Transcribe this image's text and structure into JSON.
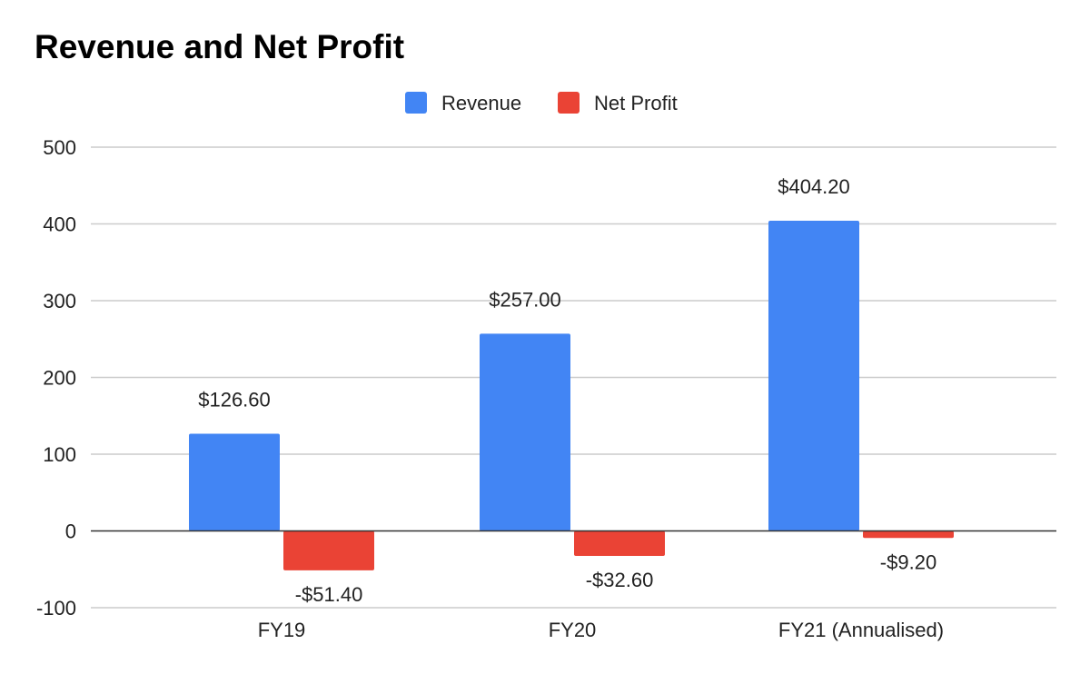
{
  "chart_data": {
    "type": "bar",
    "title": "Revenue and Net Profit",
    "categories": [
      "FY19",
      "FY20",
      "FY21 (Annualised)"
    ],
    "series": [
      {
        "name": "Revenue",
        "color": "#4285f4",
        "values": [
          126.6,
          257.0,
          404.2
        ],
        "labels": [
          "$126.60",
          "$257.00",
          "$404.20"
        ]
      },
      {
        "name": "Net Profit",
        "color": "#ea4335",
        "values": [
          -51.4,
          -32.6,
          -9.2
        ],
        "labels": [
          "-$51.40",
          "-$32.60",
          "-$9.20"
        ]
      }
    ],
    "xlabel": "",
    "ylabel": "",
    "ylim": [
      -100,
      500
    ],
    "yticks": [
      500,
      400,
      300,
      200,
      100,
      0,
      -100
    ],
    "grid": true,
    "legend_position": "top-center"
  }
}
